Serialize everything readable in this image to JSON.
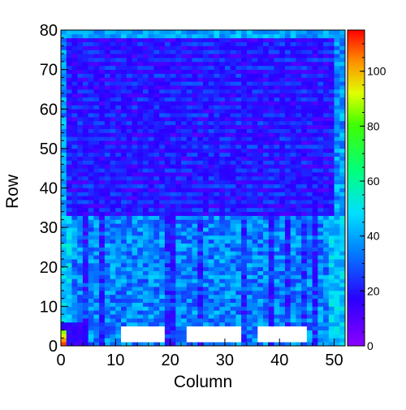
{
  "chart_data": {
    "type": "heatmap",
    "title": "",
    "xlabel": "Column",
    "ylabel": "Row",
    "xlim": [
      0,
      52
    ],
    "ylim": [
      0,
      80
    ],
    "zlim": [
      0,
      115
    ],
    "x_ticks": [
      "0",
      "10",
      "20",
      "30",
      "40",
      "50"
    ],
    "y_ticks": [
      "0",
      "10",
      "20",
      "30",
      "40",
      "50",
      "60",
      "70",
      "80"
    ],
    "colorbar_ticks": [
      "0",
      "20",
      "40",
      "60",
      "80",
      "100"
    ],
    "colormap": "rainbow (violet → blue → cyan → green → yellow → orange → red)",
    "empty_cells_color": "#ffffff",
    "summary": {
      "rows_0_to_32_typical_value": 35,
      "rows_33_to_80_typical_value": 18,
      "edge_columns_typical_value": 45,
      "bottom_left_corner_value": 110,
      "empty_blocks": [
        {
          "columns": [
            11,
            19
          ],
          "rows": [
            1,
            5
          ]
        },
        {
          "columns": [
            23,
            33
          ],
          "rows": [
            1,
            5
          ]
        },
        {
          "columns": [
            36,
            45
          ],
          "rows": [
            1,
            5
          ]
        }
      ],
      "low_columns": [
        4,
        7,
        19,
        20,
        25,
        33,
        38,
        41,
        44,
        46
      ]
    }
  }
}
